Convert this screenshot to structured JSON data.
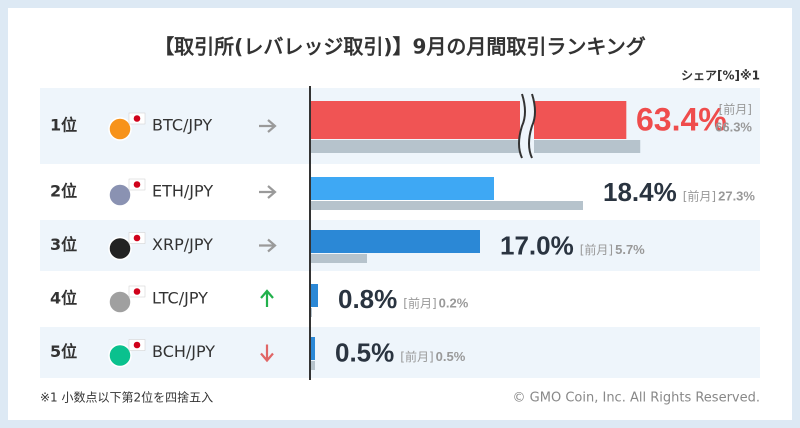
{
  "chart_data": {
    "type": "bar",
    "title": "【取引所(レバレッジ取引)】9月の月間取引ランキング",
    "unit_label": "シェア[%]※1",
    "ranks": [
      "1位",
      "2位",
      "3位",
      "4位",
      "5位"
    ],
    "categories": [
      "BTC/JPY",
      "ETH/JPY",
      "XRP/JPY",
      "LTC/JPY",
      "BCH/JPY"
    ],
    "trend": [
      "same",
      "same",
      "same",
      "up",
      "down"
    ],
    "trend_colors": {
      "same": "#9a9a9a",
      "up": "#22b14c",
      "down": "#e06666"
    },
    "icon_colors": [
      "#f7931a",
      "#8a92b2",
      "#222222",
      "#a0a0a0",
      "#0ac18e"
    ],
    "prev_prefix": "[前月]",
    "series": [
      {
        "name": "9月",
        "colors": [
          "#f05454",
          "#3ea8f4",
          "#2b88d6",
          "#2b88d6",
          "#2b88d6"
        ],
        "values": [
          63.4,
          18.4,
          17.0,
          0.8,
          0.5
        ],
        "value_labels": [
          "63.4%",
          "18.4%",
          "17.0%",
          "0.8%",
          "0.5%"
        ]
      },
      {
        "name": "前月",
        "color": "#b6c3cc",
        "values": [
          66.3,
          27.3,
          5.7,
          0.2,
          0.5
        ],
        "value_labels": [
          "66.3%",
          "27.3%",
          "5.7%",
          "0.2%",
          "0.5%"
        ]
      }
    ],
    "axis_break": 40,
    "footnote": "※1 小数点以下第2位を四捨五入",
    "copyright": "© GMO Coin, Inc. All Rights Reserved."
  }
}
